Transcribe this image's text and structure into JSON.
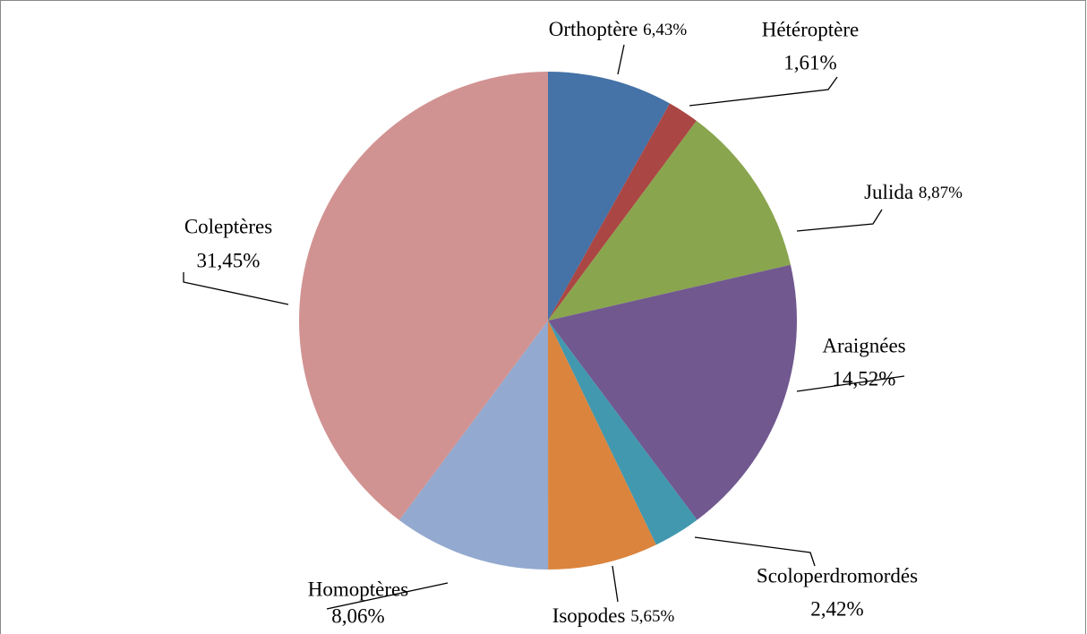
{
  "chart_data": {
    "type": "pie",
    "categories": [
      "Orthoptère",
      "Hétéroptère",
      "Julida",
      "Araignées",
      "Scoloperdromordés",
      "Isopodes",
      "Homoptères",
      "Coleptères"
    ],
    "values": [
      6.43,
      1.61,
      8.87,
      14.52,
      2.42,
      5.65,
      8.06,
      31.45
    ],
    "value_labels": [
      "6,43%",
      "1,61%",
      "8,87%",
      "14,52%",
      "2,42%",
      "5,65%",
      "8,06%",
      "31,45%"
    ],
    "colors": [
      "#4572a7",
      "#aa4643",
      "#89a54e",
      "#71588f",
      "#4198af",
      "#db843d",
      "#93a9cf",
      "#d19392"
    ]
  }
}
